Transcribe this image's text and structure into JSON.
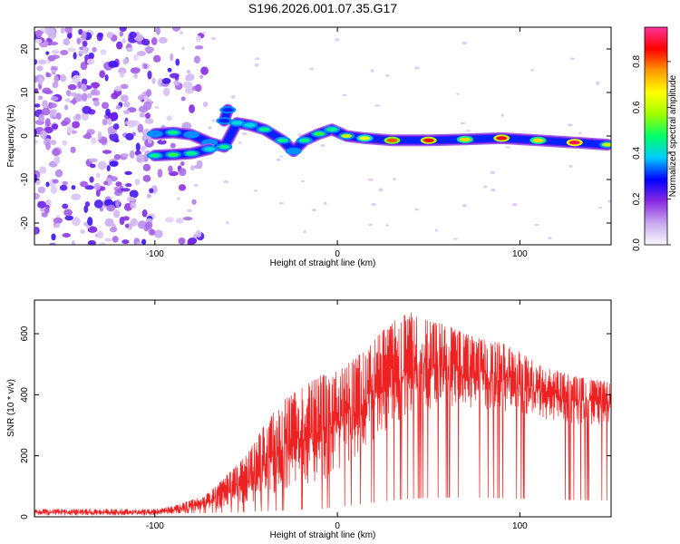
{
  "chart_data": [
    {
      "type": "heatmap",
      "title": "S196.2026.001.07.35.G17",
      "xlabel": "Height of straight line (km)",
      "ylabel": "Frequency (Hz)",
      "xlim": [
        -166,
        150
      ],
      "ylim": [
        -25,
        25
      ],
      "xticks": [
        -100,
        0,
        100
      ],
      "yticks": [
        -20,
        -10,
        0,
        10,
        20
      ],
      "colorbar": {
        "label": "Normalized spectral amplitude",
        "range": [
          0.0,
          0.95
        ],
        "ticks": [
          0.0,
          0.2,
          0.4,
          0.6,
          0.8
        ],
        "colors": [
          "#f8f8fc",
          "#c8a8f0",
          "#8a2be2",
          "#0000ff",
          "#00ccff",
          "#00ff66",
          "#a0ff00",
          "#ffff00",
          "#ff9900",
          "#ff0000",
          "#ff3399"
        ]
      },
      "noise_region_km": [
        -166,
        -80
      ],
      "ridge": {
        "points": [
          {
            "x": -100,
            "y": 0.5,
            "a": 0.35
          },
          {
            "x": -90,
            "y": 0.8,
            "a": 0.45
          },
          {
            "x": -80,
            "y": 0.3,
            "a": 0.35
          },
          {
            "x": -70,
            "y": -1.5,
            "a": 0.35
          },
          {
            "x": -62,
            "y": -2.5,
            "a": 0.45
          },
          {
            "x": -55,
            "y": 3.0,
            "a": 0.4
          },
          {
            "x": -48,
            "y": 2.5,
            "a": 0.4
          },
          {
            "x": -40,
            "y": 1.5,
            "a": 0.45
          },
          {
            "x": -30,
            "y": -1.0,
            "a": 0.45
          },
          {
            "x": -24,
            "y": -3.5,
            "a": 0.35
          },
          {
            "x": -18,
            "y": -1.0,
            "a": 0.45
          },
          {
            "x": -10,
            "y": 0.5,
            "a": 0.5
          },
          {
            "x": -3,
            "y": 1.5,
            "a": 0.45
          },
          {
            "x": 5,
            "y": 0.0,
            "a": 0.6
          },
          {
            "x": 15,
            "y": -0.5,
            "a": 0.65
          },
          {
            "x": 30,
            "y": -1.0,
            "a": 0.8
          },
          {
            "x": 50,
            "y": -1.0,
            "a": 0.85
          },
          {
            "x": 70,
            "y": -0.8,
            "a": 0.7
          },
          {
            "x": 90,
            "y": -0.5,
            "a": 0.85
          },
          {
            "x": 110,
            "y": -1.0,
            "a": 0.7
          },
          {
            "x": 130,
            "y": -1.5,
            "a": 0.9
          },
          {
            "x": 148,
            "y": -2.0,
            "a": 0.6
          }
        ],
        "lower_branch": [
          {
            "x": -100,
            "y": -4.5,
            "a": 0.45
          },
          {
            "x": -90,
            "y": -4.3,
            "a": 0.5
          },
          {
            "x": -80,
            "y": -4.0,
            "a": 0.45
          },
          {
            "x": -70,
            "y": -3.0,
            "a": 0.4
          }
        ],
        "spur": [
          {
            "x": -60,
            "y": 6.0,
            "a": 0.3
          },
          {
            "x": -62,
            "y": 3.5,
            "a": 0.3
          }
        ]
      }
    },
    {
      "type": "line",
      "xlabel": "Height of straight line (km)",
      "ylabel": "SNR (10 * v/v)",
      "xlim": [
        -166,
        150
      ],
      "ylim": [
        0,
        710
      ],
      "xticks": [
        -100,
        0,
        100
      ],
      "yticks": [
        0,
        200,
        400,
        600
      ],
      "color": "#ee2222",
      "envelope": {
        "x": [
          -166,
          -120,
          -100,
          -90,
          -80,
          -70,
          -60,
          -50,
          -40,
          -30,
          -20,
          -10,
          0,
          10,
          20,
          30,
          40,
          50,
          60,
          70,
          80,
          90,
          100,
          110,
          120,
          130,
          140,
          150
        ],
        "lower": [
          5,
          5,
          5,
          10,
          18,
          22,
          30,
          45,
          60,
          75,
          90,
          110,
          150,
          200,
          250,
          300,
          330,
          350,
          360,
          360,
          355,
          345,
          335,
          325,
          315,
          305,
          300,
          300
        ],
        "upper": [
          25,
          25,
          25,
          35,
          55,
          80,
          140,
          200,
          300,
          380,
          420,
          460,
          480,
          520,
          580,
          640,
          670,
          640,
          630,
          600,
          580,
          570,
          540,
          500,
          480,
          460,
          450,
          440
        ]
      }
    }
  ]
}
